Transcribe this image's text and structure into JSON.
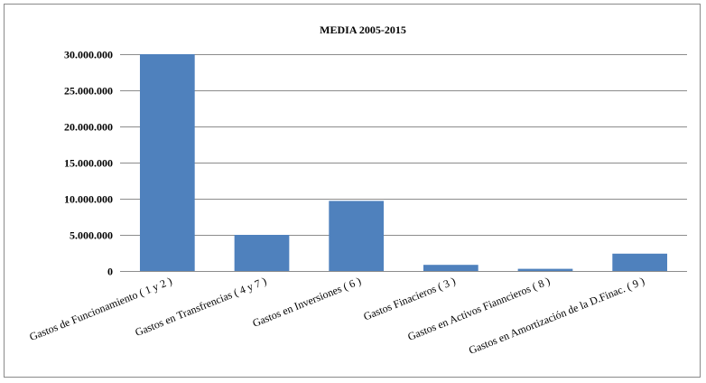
{
  "chart_data": {
    "type": "bar",
    "title": "MEDIA 2005-2015",
    "xlabel": "",
    "ylabel": "",
    "categories": [
      "Gastos de Funcionamiento ( 1 y 2 )",
      "Gastos en Transfrencias ( 4 y 7 )",
      "Gastos en Inversiones ( 6 )",
      "Gastos Finacieros ( 3 )",
      "Gastos en Activos Fianncieros ( 8 )",
      "Gastos en Amortización de la D.Finac. ( 9 )"
    ],
    "values": [
      30000000,
      5000000,
      9700000,
      850000,
      300000,
      2400000
    ],
    "ylim": [
      0,
      30000000
    ],
    "yticks": [
      0,
      5000000,
      10000000,
      15000000,
      20000000,
      25000000,
      30000000
    ],
    "ytick_labels": [
      "0",
      "5.000.000",
      "10.000.000",
      "15.000.000",
      "20.000.000",
      "25.000.000",
      "30.000.000"
    ],
    "grid": true,
    "legend": "none",
    "colors": {
      "bar": "#4f81bd",
      "grid": "#8c8c8c"
    }
  }
}
